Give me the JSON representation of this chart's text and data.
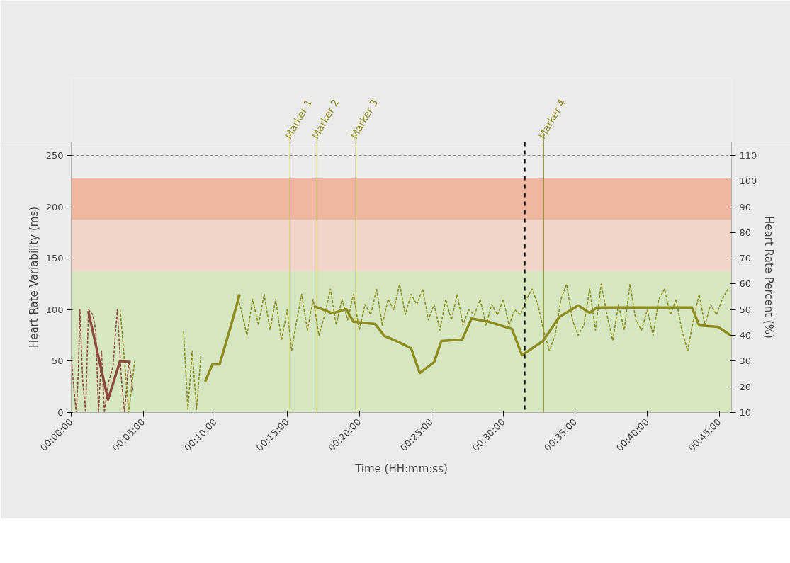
{
  "chart_data": {
    "type": "line",
    "xlabel": "Time (HH:mm:ss)",
    "ylabel": "Heart Rate Variability (ms)",
    "y2label": "Heart Rate Percent (%)",
    "xlim": [
      0,
      45.85
    ],
    "ylim": [
      0,
      263
    ],
    "y2lim": [
      10,
      115.2
    ],
    "xticks": [
      {
        "value": 0,
        "label": "00:00:00"
      },
      {
        "value": 5,
        "label": "00:05:00"
      },
      {
        "value": 10,
        "label": "00:10:00"
      },
      {
        "value": 15,
        "label": "00:15:00"
      },
      {
        "value": 20,
        "label": "00:20:00"
      },
      {
        "value": 25,
        "label": "00:25:00"
      },
      {
        "value": 30,
        "label": "00:30:00"
      },
      {
        "value": 35,
        "label": "00:35:00"
      },
      {
        "value": 40,
        "label": "00:40:00"
      },
      {
        "value": 45,
        "label": "00:45:00"
      }
    ],
    "yticks": [
      0,
      50,
      100,
      150,
      200,
      250
    ],
    "y2ticks": [
      10,
      20,
      30,
      40,
      50,
      60,
      70,
      80,
      90,
      100,
      110
    ],
    "grid": "y",
    "series": [
      {
        "color": "#8b4a3c",
        "line_style": "dashed",
        "x": [
          0.0,
          0.2,
          0.35,
          0.5,
          0.6,
          0.8,
          1.0,
          1.2,
          1.5,
          1.7,
          1.9,
          2.1,
          2.3,
          2.6,
          2.9,
          3.2,
          3.5,
          3.7,
          4.0,
          4.3
        ],
        "values": [
          55,
          20,
          0,
          40,
          100,
          30,
          0,
          100,
          95,
          80,
          0,
          60,
          0,
          30,
          45,
          100,
          30,
          0,
          50,
          20
        ]
      },
      {
        "color": "#8c8c1e",
        "line_style": "dashed",
        "x": [
          3.4,
          3.7,
          4.0,
          4.4,
          4.6,
          7.8,
          8.1,
          8.4,
          8.7,
          9.0,
          9.3,
          11.5,
          11.8,
          12.2,
          12.6,
          13.0,
          13.4,
          13.8,
          14.2,
          14.6,
          15.0,
          15.3,
          15.6,
          16.0,
          16.4,
          16.8,
          17.2,
          17.6,
          18.0,
          18.4,
          18.8,
          19.2,
          19.6,
          20.0,
          20.4,
          20.8,
          21.2,
          21.6,
          22.0,
          22.4,
          22.8,
          23.2,
          23.6,
          24.0,
          24.4,
          24.8,
          25.2,
          25.6,
          26.0,
          26.4,
          26.8,
          27.2,
          27.6,
          28.0,
          28.4,
          28.8,
          29.2,
          29.6,
          30.0,
          30.4,
          30.8,
          31.2,
          31.6,
          32.0,
          32.4,
          32.8,
          33.2,
          33.6,
          34.0,
          34.4,
          34.8,
          35.2,
          35.6,
          36.0,
          36.4,
          36.8,
          37.2,
          37.6,
          38.0,
          38.4,
          38.8,
          39.2,
          39.6,
          40.0,
          40.4,
          40.8,
          41.2,
          41.6,
          42.0,
          42.4,
          42.8,
          43.2,
          43.6,
          44.0,
          44.4,
          44.8,
          45.2,
          45.6
        ],
        "values": [
          100,
          50,
          0,
          50,
          null,
          79,
          3,
          60,
          3,
          55,
          null,
          115,
          100,
          75,
          110,
          85,
          115,
          80,
          110,
          70,
          100,
          60,
          85,
          115,
          80,
          110,
          75,
          95,
          120,
          85,
          110,
          90,
          115,
          80,
          105,
          95,
          120,
          85,
          110,
          100,
          125,
          95,
          115,
          105,
          120,
          90,
          105,
          80,
          110,
          90,
          115,
          85,
          100,
          95,
          110,
          85,
          105,
          95,
          110,
          85,
          100,
          95,
          110,
          120,
          105,
          80,
          60,
          75,
          110,
          125,
          90,
          75,
          85,
          120,
          80,
          125,
          95,
          70,
          105,
          80,
          125,
          90,
          80,
          100,
          75,
          110,
          120,
          95,
          110,
          80,
          60,
          90,
          115,
          85,
          105,
          95,
          110,
          120
        ]
      },
      {
        "color": "#8b4a3c",
        "axis": "y2",
        "line_style": "solid",
        "x": [
          1.18,
          2.56,
          3.39,
          4.13
        ],
        "values": [
          49.4,
          15,
          30,
          29.6
        ]
      },
      {
        "color": "#8c8c1e",
        "axis": "y2",
        "line_style": "solid",
        "x": [
          9.3,
          9.8,
          10.3,
          11.0,
          11.7,
          12.0,
          16.9,
          18.15,
          19.1,
          19.6,
          21.1,
          21.75,
          22.7,
          23.6,
          24.2,
          25.2,
          25.7,
          27.15,
          27.8,
          28.5,
          29.0,
          30.6,
          31.3,
          32.75,
          33.9,
          35.2,
          36.0,
          36.5,
          43.1,
          43.6,
          44.9,
          45.85
        ],
        "values": [
          22,
          28.7,
          28.7,
          42,
          56,
          null,
          51.3,
          48.6,
          50.2,
          45.3,
          44.4,
          39.8,
          37.5,
          35,
          25.4,
          29.6,
          37.8,
          38.4,
          46.6,
          45.8,
          45.3,
          42.5,
          32.3,
          37.8,
          47.2,
          51.6,
          48.8,
          50.8,
          50.8,
          43.9,
          43.3,
          39.8
        ]
      }
    ],
    "bands": [
      {
        "axis": "y2",
        "from": 10,
        "to": 65,
        "color": "#d6e6c0"
      },
      {
        "axis": "y2",
        "from": 65,
        "to": 85,
        "color": "#f1d5c9"
      },
      {
        "axis": "y2",
        "from": 85,
        "to": 101,
        "color": "#efb6a0"
      }
    ],
    "ref_lines": [
      {
        "axis": "x",
        "value": 15.2,
        "label": "Marker 1",
        "color": "#8c8c1e",
        "line_style": "solid"
      },
      {
        "axis": "x",
        "value": 17.07,
        "label": "Marker 2",
        "color": "#8c8c1e",
        "line_style": "solid"
      },
      {
        "axis": "x",
        "value": 19.77,
        "label": "Marker 3",
        "color": "#8c8c1e",
        "line_style": "solid"
      },
      {
        "axis": "x",
        "value": 31.48,
        "label": null,
        "color": "#000000",
        "line_style": "dashed"
      },
      {
        "axis": "x",
        "value": 32.8,
        "label": "Marker 4",
        "color": "#8c8c1e",
        "line_style": "solid"
      }
    ]
  }
}
